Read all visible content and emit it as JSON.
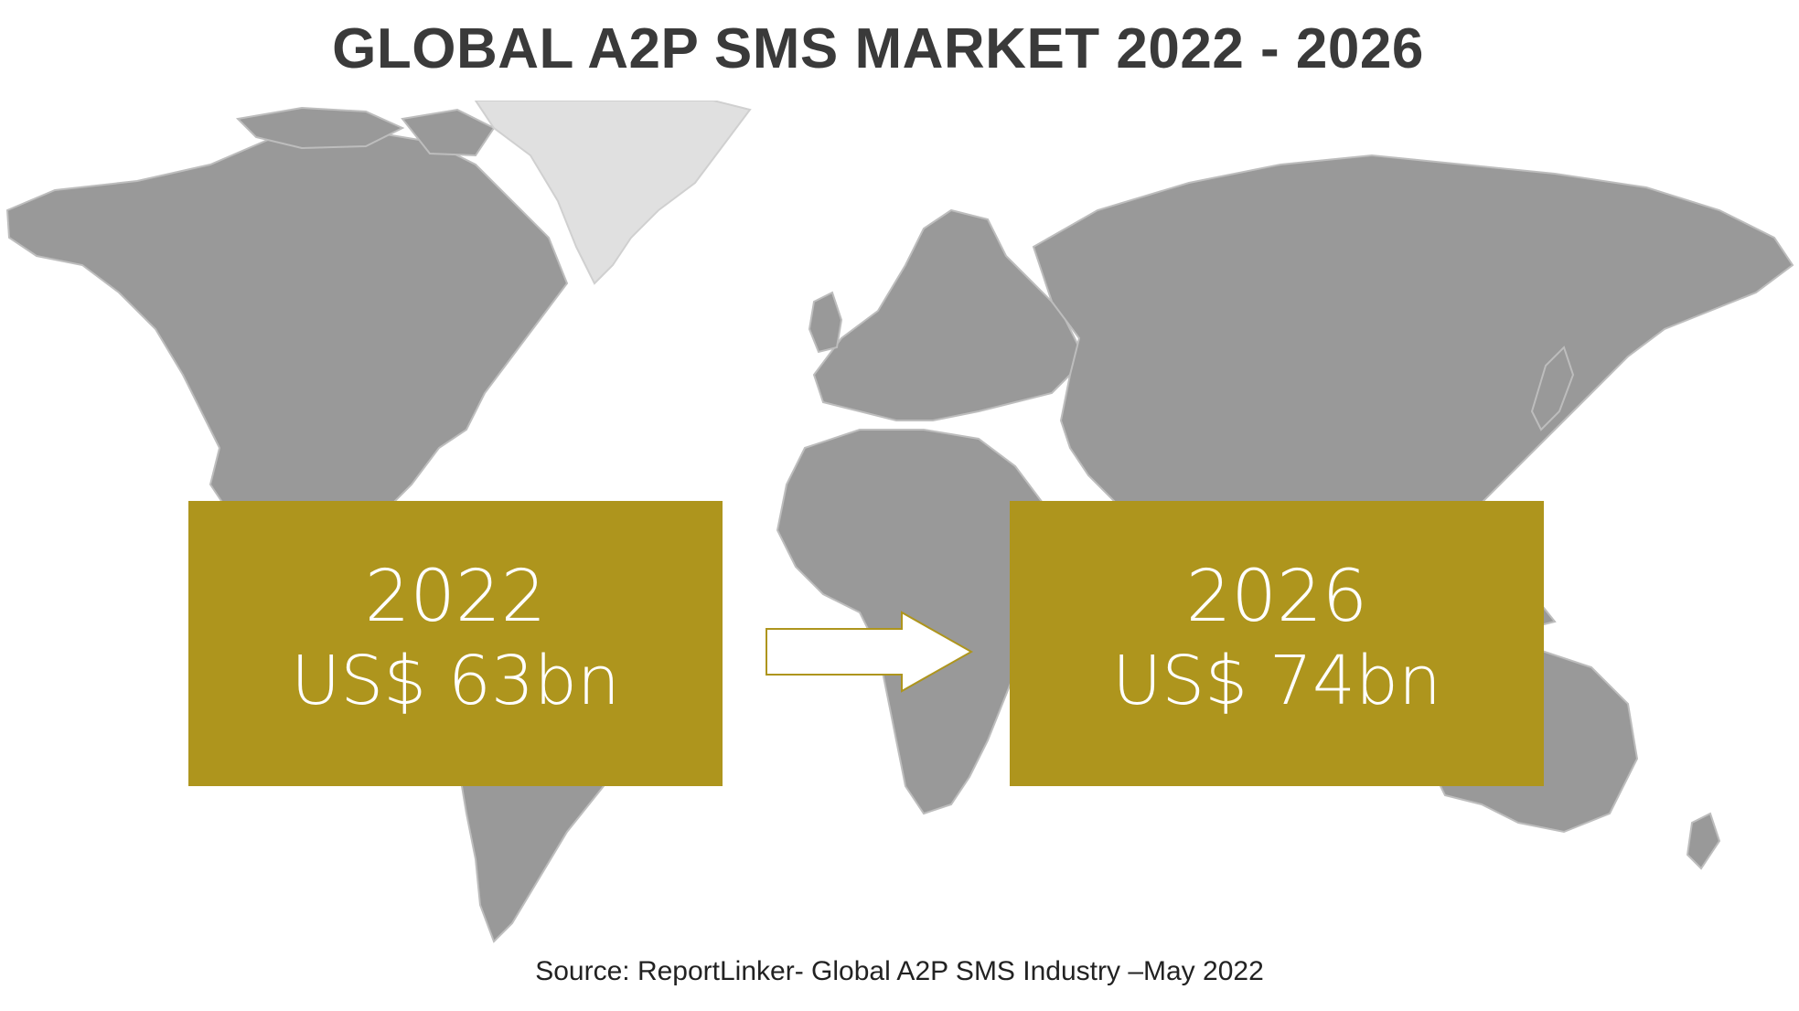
{
  "title": "GLOBAL A2P SMS MARKET 2022 - 2026",
  "boxes": {
    "left": {
      "year": "2022",
      "amount": "US$ 63bn"
    },
    "right": {
      "year": "2026",
      "amount": "US$ 74bn"
    }
  },
  "source": "Source: ReportLinker- Global A2P SMS Industry –May 2022",
  "colors": {
    "box": "#ae951d",
    "land": "#999999",
    "greenland": "#e0e0e0",
    "title": "#3a3a3a"
  },
  "icons": {
    "map": "world-map-icon",
    "arrow": "right-arrow-icon"
  }
}
